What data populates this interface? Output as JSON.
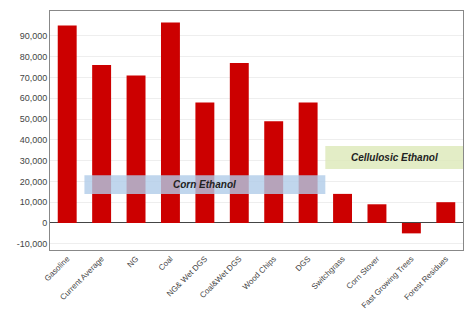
{
  "chart_data": {
    "type": "bar",
    "categories": [
      "Gasoline",
      "Current Average",
      "NG",
      "Coal",
      "NG& Wet DGS",
      "Coal&Wet DGS",
      "Wood Chips",
      "DGS",
      "Switchgrass",
      "Corn Stover",
      "Fast Growing Trees",
      "Forest Residues"
    ],
    "values": [
      95000,
      76000,
      71000,
      96500,
      58000,
      77000,
      49000,
      58000,
      14000,
      9000,
      -5000,
      10000
    ],
    "color": "#cc0000",
    "ylim": [
      -13000,
      102000
    ],
    "yticks": [
      {
        "value": -10000,
        "label": "-10,000"
      },
      0,
      {
        "value": 10000,
        "label": "10,000"
      },
      {
        "value": 20000,
        "label": "20,000"
      },
      {
        "value": 30000,
        "label": "30,000"
      },
      {
        "value": 40000,
        "label": "40,000"
      },
      {
        "value": 50000,
        "label": "50,000"
      },
      {
        "value": 60000,
        "label": "60,000"
      },
      {
        "value": 70000,
        "label": "70,000"
      },
      {
        "value": 80000,
        "label": "80,000"
      },
      {
        "value": 90000,
        "label": "90,000"
      }
    ],
    "grid": true,
    "annotations": [
      {
        "text": "Corn Ethanol",
        "categories": [
          "Current Average",
          "DGS"
        ],
        "y": [
          14000,
          23000
        ],
        "color": "#b0cce8"
      },
      {
        "text": "Cellulosic Ethanol",
        "categories": [
          "Switchgrass",
          "Forest Residues"
        ],
        "y": [
          26000,
          37000
        ],
        "color": "#dce8b8"
      }
    ]
  }
}
